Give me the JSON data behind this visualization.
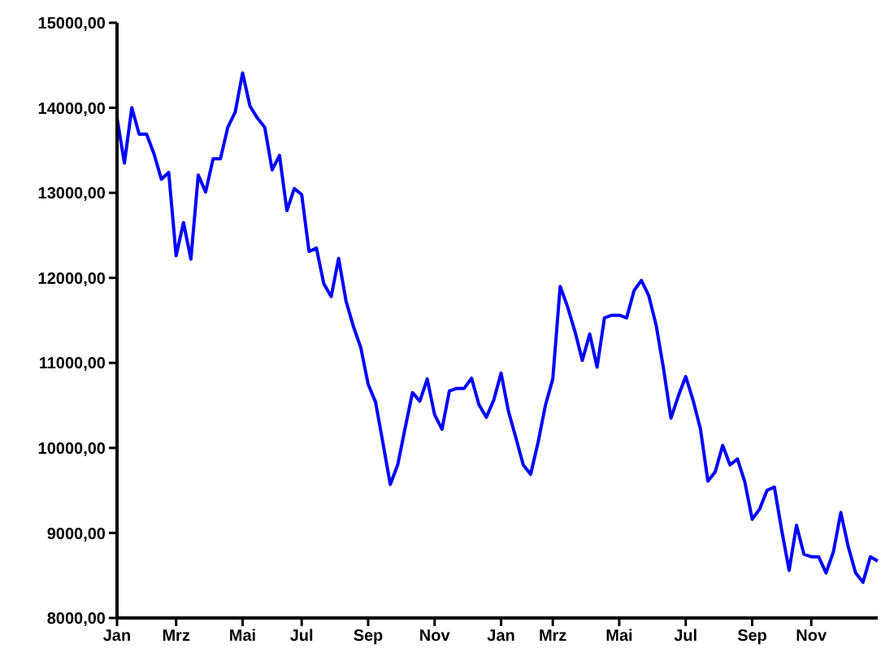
{
  "chart_data": {
    "type": "line",
    "categories": [
      "Jan",
      null,
      null,
      null,
      null,
      null,
      null,
      null,
      "Mrz",
      null,
      null,
      null,
      null,
      null,
      null,
      null,
      null,
      "Mai",
      null,
      null,
      null,
      null,
      null,
      null,
      null,
      "Jul",
      null,
      null,
      null,
      null,
      null,
      null,
      null,
      null,
      "Sep",
      null,
      null,
      null,
      null,
      null,
      null,
      null,
      null,
      "Nov",
      null,
      null,
      null,
      null,
      null,
      null,
      null,
      null,
      "Jan",
      null,
      null,
      null,
      null,
      null,
      null,
      "Mrz",
      null,
      null,
      null,
      null,
      null,
      null,
      null,
      null,
      "Mai",
      null,
      null,
      null,
      null,
      null,
      null,
      null,
      null,
      "Jul",
      null,
      null,
      null,
      null,
      null,
      null,
      null,
      null,
      "Sep",
      null,
      null,
      null,
      null,
      null,
      null,
      null,
      "Nov",
      null,
      null,
      null,
      null,
      null,
      null,
      null,
      null,
      null
    ],
    "series": [
      {
        "color": "#0000ff",
        "values": [
          13880,
          13350,
          14000,
          13690,
          13690,
          13460,
          13160,
          13240,
          12260,
          12650,
          12220,
          13210,
          13010,
          13400,
          13400,
          13770,
          13950,
          14410,
          14020,
          13880,
          13770,
          13270,
          13440,
          12790,
          13050,
          12980,
          12310,
          12350,
          11930,
          11780,
          12230,
          11730,
          11430,
          11180,
          10750,
          10540,
          10060,
          9570,
          9800,
          10230,
          10650,
          10550,
          10810,
          10390,
          10220,
          10670,
          10700,
          10700,
          10820,
          10510,
          10360,
          10560,
          10880,
          10430,
          10120,
          9800,
          9690,
          10060,
          10500,
          10810,
          11900,
          11660,
          11370,
          11030,
          11340,
          10950,
          11530,
          11560,
          11560,
          11530,
          11850,
          11970,
          11790,
          11440,
          10930,
          10350,
          10610,
          10840,
          10560,
          10220,
          9610,
          9720,
          10030,
          9800,
          9870,
          9600,
          9160,
          9280,
          9500,
          9540,
          9030,
          8560,
          9090,
          8750,
          8720,
          8720,
          8530,
          8780,
          9240,
          8840,
          8530,
          8420,
          8720,
          8670
        ]
      }
    ],
    "ylim": [
      8000,
      15000
    ],
    "yticks": [
      {
        "value": 8000,
        "label": "8000,00"
      },
      {
        "value": 9000,
        "label": "9000,00"
      },
      {
        "value": 10000,
        "label": "10000,00"
      },
      {
        "value": 11000,
        "label": "11000,00"
      },
      {
        "value": 12000,
        "label": "12000,00"
      },
      {
        "value": 13000,
        "label": "13000,00"
      },
      {
        "value": 14000,
        "label": "14000,00"
      },
      {
        "value": 15000,
        "label": "15000,00"
      }
    ],
    "grid": false,
    "legend": false,
    "marker": "none",
    "line_style": "solid"
  }
}
